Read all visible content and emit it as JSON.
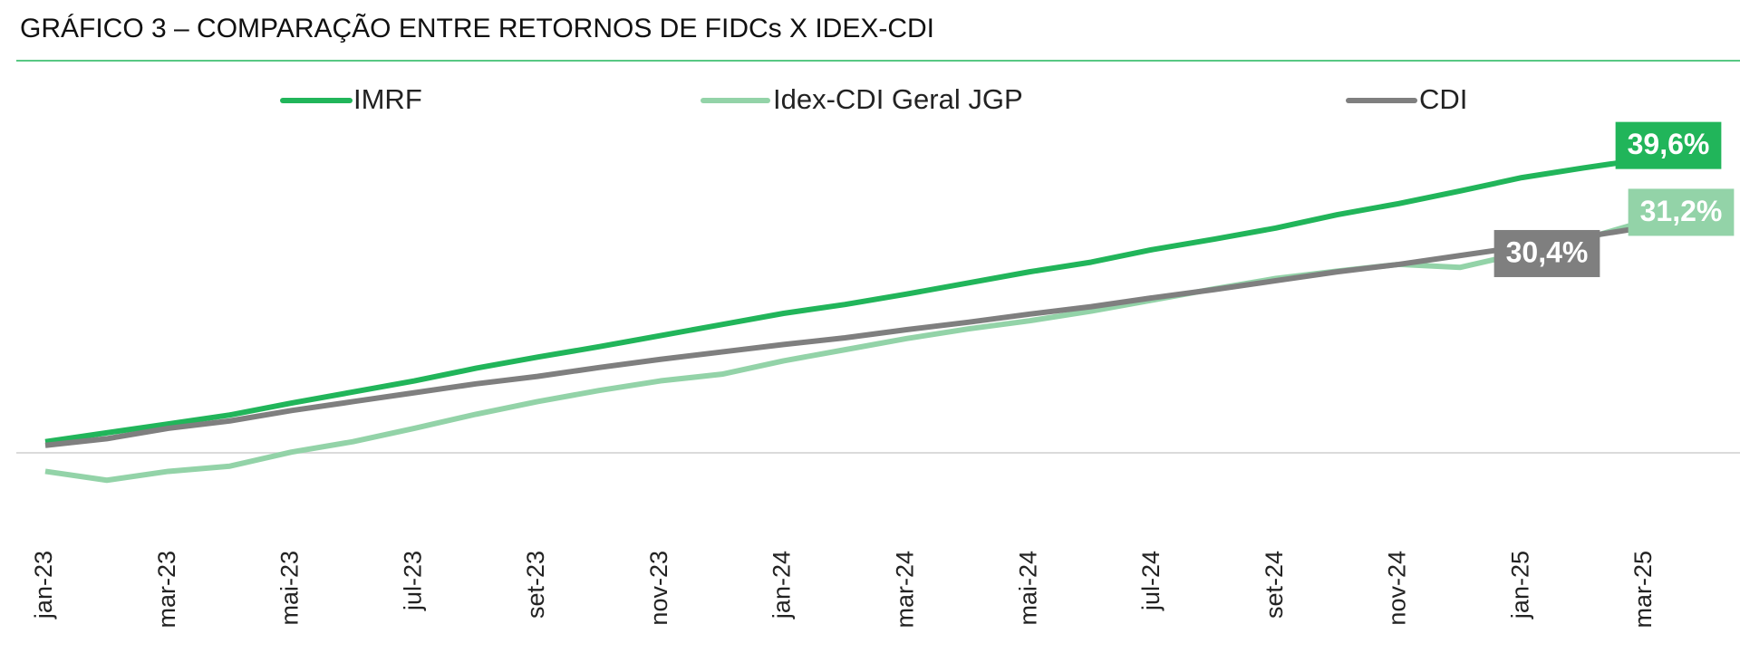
{
  "chart_data": {
    "type": "line",
    "title": "GRÁFICO 3 – COMPARAÇÃO ENTRE RETORNOS DE FIDCs X IDEX-CDI",
    "categories": [
      "jan-23",
      null,
      "mar-23",
      null,
      "mai-23",
      null,
      "jul-23",
      null,
      "set-23",
      null,
      "nov-23",
      null,
      "jan-24",
      null,
      "mar-24",
      null,
      "mai-24",
      null,
      "jul-24",
      null,
      "set-24",
      null,
      "nov-24",
      null,
      "jan-25",
      null,
      "mar-25"
    ],
    "series": [
      {
        "name": "IMRF",
        "color": "#21b55a",
        "values": [
          1.5,
          2.7,
          3.9,
          5.1,
          6.7,
          8.2,
          9.7,
          11.4,
          12.9,
          14.3,
          15.8,
          17.3,
          18.8,
          20.0,
          21.4,
          22.9,
          24.4,
          25.7,
          27.4,
          28.8,
          30.3,
          32.1,
          33.6,
          35.3,
          37.1,
          38.4,
          39.6
        ],
        "value_labels": [
          null,
          null,
          null,
          null,
          null,
          null,
          null,
          null,
          null,
          null,
          null,
          null,
          null,
          null,
          null,
          null,
          null,
          null,
          null,
          null,
          null,
          null,
          null,
          null,
          null,
          null,
          "39,6%"
        ]
      },
      {
        "name": "Idex-CDI Geral JGP",
        "color": "#93d3a8",
        "values": [
          -2.5,
          -3.7,
          -2.5,
          -1.8,
          0.1,
          1.5,
          3.3,
          5.2,
          6.9,
          8.4,
          9.7,
          10.6,
          12.4,
          13.9,
          15.4,
          16.7,
          17.8,
          19.1,
          20.6,
          22.1,
          23.5,
          24.5,
          25.4,
          25.0,
          26.9,
          28.8,
          31.2
        ],
        "value_labels": [
          null,
          null,
          null,
          null,
          null,
          null,
          null,
          null,
          null,
          null,
          null,
          null,
          null,
          null,
          null,
          null,
          null,
          null,
          null,
          null,
          null,
          null,
          null,
          null,
          null,
          null,
          "31,2%"
        ]
      },
      {
        "name": "CDI",
        "color": "#7f7f7f",
        "values": [
          1.0,
          1.9,
          3.3,
          4.3,
          5.7,
          6.9,
          8.1,
          9.3,
          10.3,
          11.5,
          12.6,
          13.6,
          14.6,
          15.5,
          16.6,
          17.6,
          18.7,
          19.7,
          20.9,
          22.0,
          23.2,
          24.4,
          25.4,
          26.6,
          27.8,
          29.1,
          30.4
        ],
        "value_labels": [
          null,
          null,
          null,
          null,
          null,
          null,
          null,
          null,
          null,
          null,
          null,
          null,
          null,
          null,
          null,
          null,
          null,
          null,
          null,
          null,
          null,
          null,
          null,
          null,
          null,
          null,
          "30,4%"
        ]
      }
    ],
    "ylim": [
      -8,
      45
    ]
  }
}
